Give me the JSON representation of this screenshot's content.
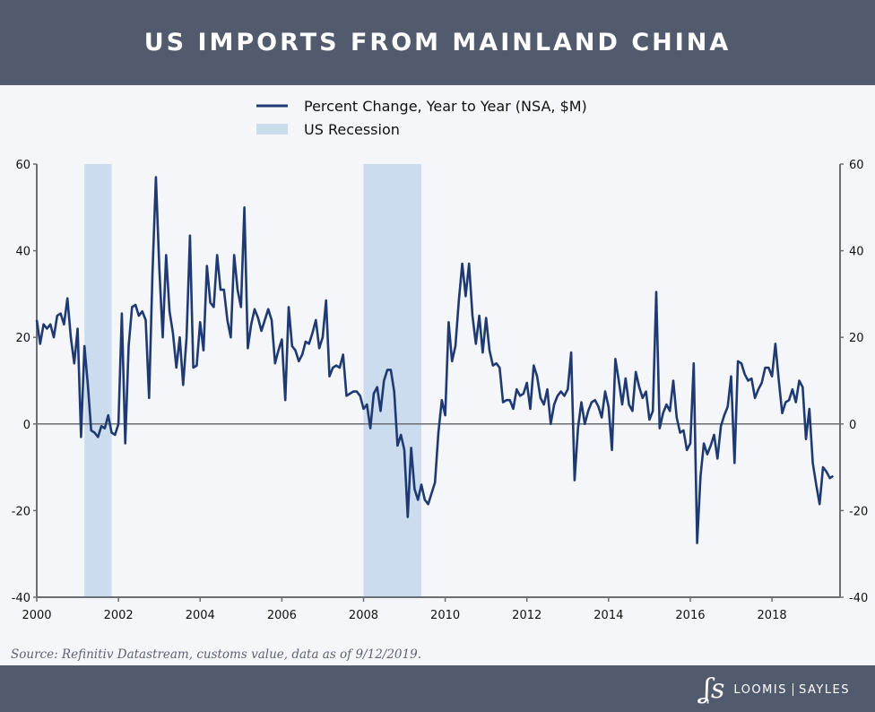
{
  "header": {
    "title": "US IMPORTS FROM MAINLAND CHINA"
  },
  "source": "Source: Refinitiv Datastream, customs value, data as of 9/12/2019.",
  "logo": {
    "left": "LOOMIS",
    "right": "SAYLES",
    "mark": "LS"
  },
  "colors": {
    "line": "#1f3a73",
    "recession": "#cbdcee",
    "header": "#525b6e",
    "axis": "#6b6e73",
    "background": "#f4f6fa"
  },
  "chart_data": {
    "type": "line",
    "title": "US IMPORTS FROM MAINLAND CHINA",
    "xlabel": "",
    "ylabel": "",
    "ylim": [
      -40,
      60
    ],
    "yticks": [
      -40,
      -20,
      0,
      20,
      40,
      60
    ],
    "xticks": [
      "2000",
      "2002",
      "2004",
      "2006",
      "2008",
      "2010",
      "2012",
      "2014",
      "2016",
      "2018"
    ],
    "xlim": [
      "2000-01",
      "2019-09"
    ],
    "grid": false,
    "zero_line": true,
    "dual_y_axis": true,
    "legend_placement": "top-center",
    "legend": [
      {
        "label": "Percent Change, Year to Year (NSA, $M)",
        "kind": "line"
      },
      {
        "label": "US Recession",
        "kind": "band"
      }
    ],
    "recessions": [
      {
        "start": "2001-03",
        "end": "2001-11"
      },
      {
        "start": "2008-01",
        "end": "2009-06"
      }
    ],
    "series": [
      {
        "name": "Percent Change, Year to Year (NSA, $M)",
        "monthly_values_by_year": {
          "2000": [
            24,
            18.5,
            23,
            22,
            23,
            20,
            25,
            25.5,
            23,
            29,
            20,
            14
          ],
          "2001": [
            22,
            -3,
            18,
            9,
            -1.5,
            -2,
            -3,
            -0.5,
            -1,
            2,
            -2,
            -2.5
          ],
          "2002": [
            0,
            25.5,
            -4.5,
            18,
            27,
            27.5,
            25,
            26,
            24,
            6,
            35,
            57
          ],
          "2003": [
            36,
            20,
            39,
            26,
            21,
            13,
            20,
            9,
            20,
            43.5,
            13,
            13.5
          ],
          "2004": [
            23.5,
            17,
            36.5,
            28,
            27,
            39,
            31,
            31,
            24,
            20,
            39,
            31
          ],
          "2005": [
            27,
            50,
            17.5,
            23,
            26.5,
            24.5,
            21.5,
            24,
            26.5,
            24,
            14,
            17
          ],
          "2006": [
            19.5,
            5.5,
            27,
            18,
            17,
            14.5,
            16,
            19,
            18.5,
            21,
            24,
            17.5
          ],
          "2007": [
            20,
            28.5,
            11,
            13,
            13.5,
            13,
            16,
            6.5,
            7,
            7.5,
            7.5,
            6.5
          ],
          "2008": [
            3.5,
            4.5,
            -1,
            7,
            8.5,
            3,
            10,
            12.5,
            12.5,
            7.5,
            -5,
            -2.5
          ],
          "2009": [
            -6,
            -21.5,
            -5.5,
            -15,
            -17.5,
            -14,
            -17.5,
            -18.5,
            -16,
            -13.5,
            -2,
            5.5
          ],
          "2010": [
            2,
            23.5,
            14.5,
            18,
            28.5,
            37,
            29.5,
            37,
            25,
            18.5,
            25,
            16.5
          ],
          "2011": [
            24.5,
            17,
            13.5,
            14,
            13,
            5,
            5.5,
            5.5,
            3.5,
            8,
            6.5,
            7
          ],
          "2012": [
            9.5,
            3.5,
            13.5,
            11,
            6,
            4.5,
            8,
            0,
            4.5,
            6.5,
            7.5,
            6.5
          ],
          "2013": [
            8,
            16.5,
            -13,
            -1,
            5,
            0,
            3,
            5,
            5.5,
            4,
            1.5,
            7.5
          ],
          "2014": [
            4,
            -6,
            15,
            10,
            4.5,
            10.5,
            4.5,
            3,
            12,
            8.5,
            6,
            7.5
          ],
          "2015": [
            1,
            3,
            30.5,
            -1,
            2.5,
            4.5,
            3,
            10,
            1.5,
            -2,
            -1.5,
            -6
          ],
          "2016": [
            -4.5,
            14,
            -27.5,
            -12,
            -4.5,
            -7,
            -5,
            -2.5,
            -8,
            -0.5,
            2,
            4
          ],
          "2017": [
            11,
            -9,
            14.5,
            14,
            11.5,
            10,
            10.5,
            6,
            8,
            9.5,
            13,
            13
          ],
          "2018": [
            11,
            18.5,
            10,
            2.5,
            5,
            5.5,
            8,
            5,
            10,
            8.5,
            -3.5,
            3.5
          ],
          "2019": [
            -9,
            -14,
            -18.5,
            -10,
            -11,
            -12.5,
            -12
          ]
        }
      }
    ]
  }
}
